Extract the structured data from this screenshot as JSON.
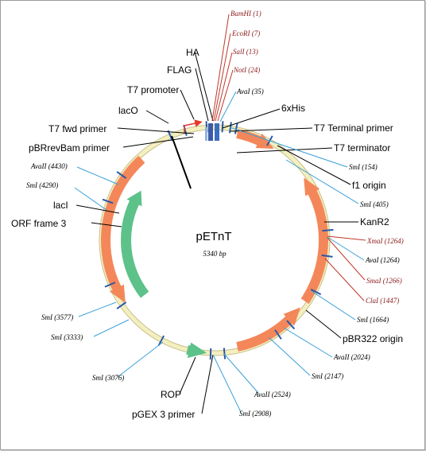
{
  "plasmid": {
    "name": "pETnT",
    "size": "5340 bp"
  },
  "features": [
    {
      "id": "t7-promoter",
      "label": "T7 promoter"
    },
    {
      "id": "laco",
      "label": "lacO"
    },
    {
      "id": "t7-fwd-primer",
      "label": "T7 fwd primer"
    },
    {
      "id": "pbrrevbam-primer",
      "label": "pBRrevBam primer"
    },
    {
      "id": "laci",
      "label": "lacI"
    },
    {
      "id": "orf-frame-3",
      "label": "ORF frame 3"
    },
    {
      "id": "flag",
      "label": "FLAG"
    },
    {
      "id": "ha",
      "label": "HA"
    },
    {
      "id": "6xhis",
      "label": "6xHis"
    },
    {
      "id": "t7-terminal-primer",
      "label": "T7 Terminal primer"
    },
    {
      "id": "t7-terminator",
      "label": "T7 terminator"
    },
    {
      "id": "f1-origin",
      "label": "f1 origin"
    },
    {
      "id": "kanr2",
      "label": "KanR2"
    },
    {
      "id": "pbr322-origin",
      "label": "pBR322 origin"
    },
    {
      "id": "rop",
      "label": "ROP"
    },
    {
      "id": "pgex3-primer",
      "label": "pGEX 3 primer"
    }
  ],
  "sites": [
    {
      "id": "bamhi-1",
      "label": "BamHI (1)",
      "color": "#8b1a1a"
    },
    {
      "id": "ecori-7",
      "label": "EcoRI (7)",
      "color": "#8b1a1a"
    },
    {
      "id": "sali-13",
      "label": "SalI (13)",
      "color": "#8b1a1a"
    },
    {
      "id": "noti-24",
      "label": "NotI (24)",
      "color": "#8b1a1a"
    },
    {
      "id": "avai-35",
      "label": "AvaI (35)",
      "color": "#000000"
    },
    {
      "id": "smai-154",
      "label": "SmI (154)",
      "color": "#000000"
    },
    {
      "id": "smai-405",
      "label": "SmI (405)",
      "color": "#000000"
    },
    {
      "id": "xmai-1264",
      "label": "XmaI (1264)",
      "color": "#8b1a1a"
    },
    {
      "id": "avai-1264",
      "label": "AvaI (1264)",
      "color": "#000000"
    },
    {
      "id": "smai-1266",
      "label": "SmaI (1266)",
      "color": "#8b1a1a"
    },
    {
      "id": "clai-1447",
      "label": "ClaI (1447)",
      "color": "#8b1a1a"
    },
    {
      "id": "smi-1664",
      "label": "SmI (1664)",
      "color": "#000000"
    },
    {
      "id": "avalii-2024",
      "label": "AvaII (2024)",
      "color": "#000000"
    },
    {
      "id": "smi-2147",
      "label": "SmI (2147)",
      "color": "#000000"
    },
    {
      "id": "avalii-2524",
      "label": "AvaII (2524)",
      "color": "#000000"
    },
    {
      "id": "smi-2908",
      "label": "SmI (2908)",
      "color": "#000000"
    },
    {
      "id": "smi-3076",
      "label": "SmI (3076)",
      "color": "#000000"
    },
    {
      "id": "smi-3333",
      "label": "SmI (3333)",
      "color": "#000000"
    },
    {
      "id": "smi-3577",
      "label": "SmI (3577)",
      "color": "#000000"
    },
    {
      "id": "smi-4290",
      "label": "SmI (4290)",
      "color": "#000000"
    },
    {
      "id": "avalii-4430",
      "label": "AvaII (4430)",
      "color": "#000000"
    }
  ],
  "colors": {
    "backbone": "#f3efc0",
    "backbone_edge": "#c9c08a",
    "gene_orange": "#f4875a",
    "gene_green": "#5cc28a",
    "site_tick": "#2a5aa8",
    "leader_blue": "#3aa0d8",
    "leader_red": "#c0392b",
    "promoter": "#e23a2a"
  }
}
